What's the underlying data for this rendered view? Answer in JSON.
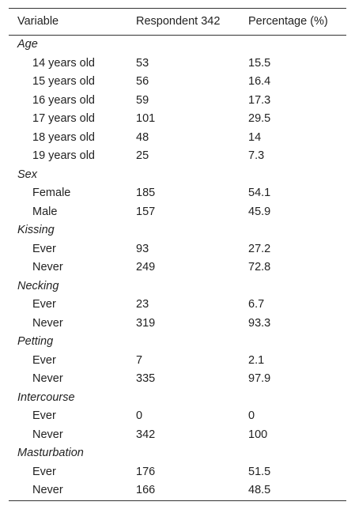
{
  "table": {
    "columns": [
      "Variable",
      "Respondent 342",
      "Percentage (%)"
    ],
    "groups": [
      {
        "label": "Age",
        "rows": [
          [
            "14 years old",
            53,
            15.5
          ],
          [
            "15 years old",
            56,
            16.4
          ],
          [
            "16 years old",
            59,
            17.3
          ],
          [
            "17 years old",
            101,
            29.5
          ],
          [
            "18 years old",
            48,
            14
          ],
          [
            "19 years old",
            25,
            7.3
          ]
        ]
      },
      {
        "label": "Sex",
        "rows": [
          [
            "Female",
            185,
            54.1
          ],
          [
            "Male",
            157,
            45.9
          ]
        ]
      },
      {
        "label": "Kissing",
        "rows": [
          [
            "Ever",
            93,
            27.2
          ],
          [
            "Never",
            249,
            72.8
          ]
        ]
      },
      {
        "label": "Necking",
        "rows": [
          [
            "Ever",
            23,
            6.7
          ],
          [
            "Never",
            319,
            93.3
          ]
        ]
      },
      {
        "label": "Petting",
        "rows": [
          [
            "Ever",
            7,
            2.1
          ],
          [
            "Never",
            335,
            97.9
          ]
        ]
      },
      {
        "label": "Intercourse",
        "rows": [
          [
            "Ever",
            0,
            0
          ],
          [
            "Never",
            342,
            100
          ]
        ]
      },
      {
        "label": "Masturbation",
        "rows": [
          [
            "Ever",
            176,
            51.5
          ],
          [
            "Never",
            166,
            48.5
          ]
        ]
      }
    ]
  }
}
